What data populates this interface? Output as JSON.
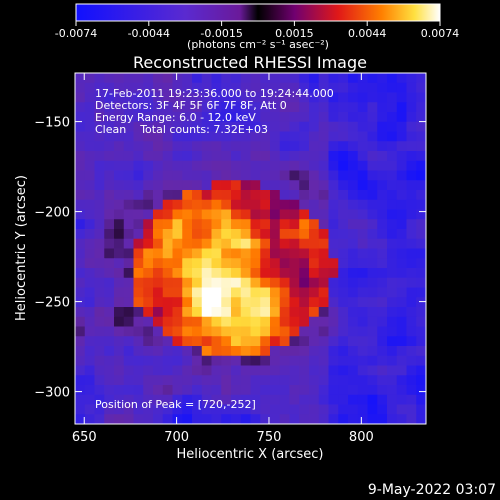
{
  "chart_data": {
    "type": "heatmap",
    "title": "Reconstructed RHESSI Image",
    "xlabel": "Heliocentric X (arcsec)",
    "ylabel": "Heliocentric Y (arcsec)",
    "xlim": [
      645,
      835
    ],
    "ylim": [
      -318,
      -123
    ],
    "x_ticks": [
      650,
      700,
      750,
      800
    ],
    "y_ticks": [
      -150,
      -200,
      -250,
      -300
    ],
    "colorbar": {
      "ticks": [
        "-0.0074",
        "-0.0044",
        "-0.0015",
        "0.0015",
        "0.0044",
        "0.0074"
      ],
      "range": [
        -0.0074,
        0.0074
      ],
      "label": "(photons cm⁻² s⁻¹ asec⁻²)"
    },
    "annotations": [
      "17-Feb-2011 19:23:36.000 to 19:24:44.000",
      "Detectors: 3F 4F 5F 6F 7F 8F, Att 0",
      "Energy Range: 6.0 - 12.0 keV",
      "Clean    Total counts: 7.32E+03"
    ],
    "peak_label": "Position of Peak = [720,-252]",
    "peak": [
      720,
      -252
    ],
    "source_center": [
      730,
      -232
    ],
    "source_radius": [
      55,
      48
    ]
  },
  "footer": {
    "timestamp": "9-May-2022 03:07"
  }
}
